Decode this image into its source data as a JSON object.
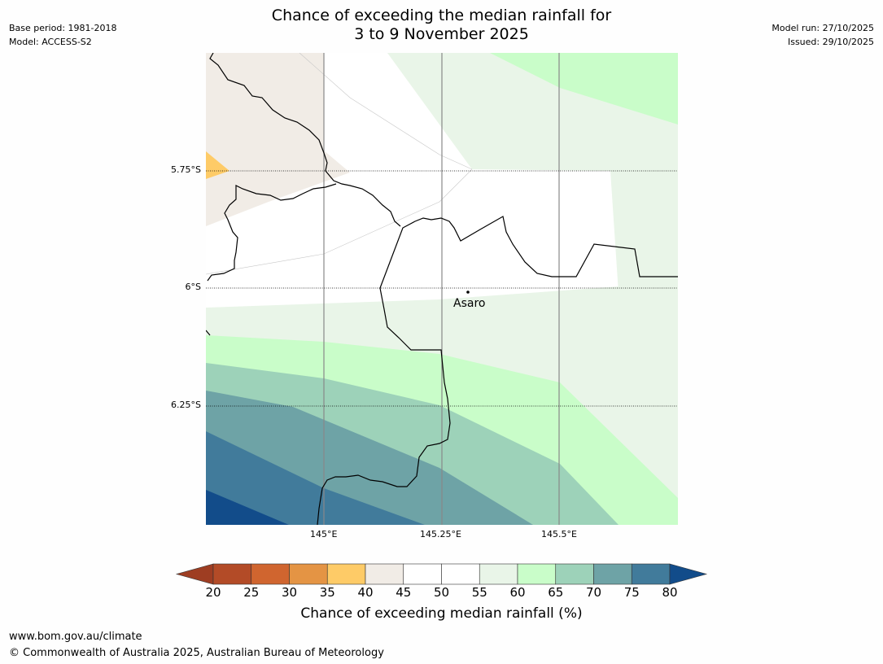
{
  "title": {
    "line1": "Chance of exceeding the median rainfall for",
    "line2": "3 to 9 November 2025"
  },
  "meta_left": {
    "base_period": "Base period: 1981-2018",
    "model": "Model: ACCESS-S2"
  },
  "meta_right": {
    "model_run": "Model run: 27/10/2025",
    "issued": "Issued: 29/10/2025"
  },
  "map": {
    "latitude_labels": [
      "5.75°S",
      "6°S",
      "6.25°S"
    ],
    "longitude_labels": [
      "145°E",
      "145.25°E",
      "145.5°E"
    ],
    "place": {
      "name": "Asaro"
    }
  },
  "colorbar": {
    "ticks": [
      "20",
      "25",
      "30",
      "35",
      "40",
      "45",
      "50",
      "55",
      "60",
      "65",
      "70",
      "75",
      "80"
    ],
    "colors": [
      "#9e3d22",
      "#b34b27",
      "#d0652f",
      "#e49444",
      "#fecb67",
      "#f1ece6",
      "#ffffff",
      "#ffffff",
      "#e9f5e8",
      "#c9fdc9",
      "#9dd2b9",
      "#6ea3a6",
      "#417b9b",
      "#124c8a"
    ],
    "label": "Chance of exceeding median rainfall (%)"
  },
  "footer": {
    "url": "www.bom.gov.au/climate",
    "copyright": "© Commonwealth of Australia 2025, Australian Bureau of Meteorology"
  }
}
